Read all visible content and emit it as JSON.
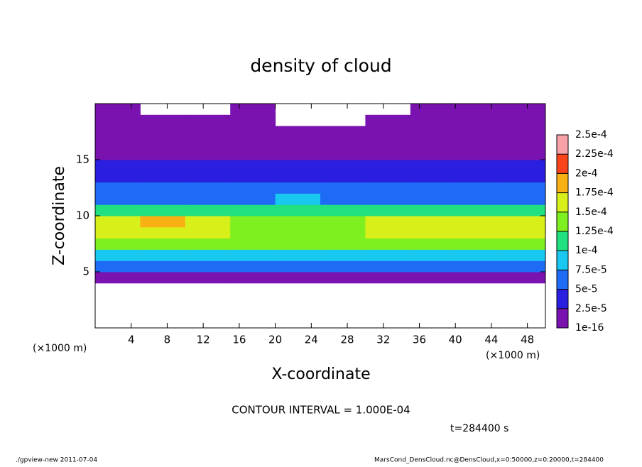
{
  "chart_data": {
    "type": "heatmap",
    "title": "density of cloud",
    "x_label": "X-coordinate",
    "y_label": "Z-coordinate",
    "x_unit": "(×1000 m)",
    "y_unit": "(×1000 m)",
    "note": "CONTOUR INTERVAL = 1.000E-04",
    "time_label": "t=284400 s",
    "footer_left": "./gpview-new  2011-07-04",
    "footer_right": "MarsCond_DensCloud.nc@DensCloud,x=0:50000,z=0:20000,t=284400",
    "xlim": [
      0,
      50
    ],
    "ylim": [
      0,
      20
    ],
    "xticks": [
      4,
      8,
      12,
      16,
      20,
      24,
      28,
      32,
      36,
      40,
      44,
      48
    ],
    "yticks": [
      5,
      10,
      15
    ],
    "xbins": [
      0,
      5,
      10,
      15,
      20,
      25,
      30,
      35,
      40,
      45,
      50
    ],
    "ybins": [
      0,
      1,
      2,
      3,
      4,
      5,
      6,
      7,
      8,
      9,
      10,
      11,
      12,
      13,
      14,
      15,
      16,
      17,
      18,
      19,
      20
    ],
    "values": [
      [
        null,
        null,
        null,
        null,
        null,
        null,
        null,
        null,
        null,
        null
      ],
      [
        null,
        null,
        null,
        null,
        null,
        null,
        null,
        null,
        null,
        null
      ],
      [
        null,
        null,
        null,
        null,
        null,
        null,
        null,
        null,
        null,
        null
      ],
      [
        null,
        null,
        null,
        null,
        null,
        null,
        null,
        null,
        null,
        null
      ],
      [
        2e-05,
        2e-05,
        2e-05,
        2e-05,
        2e-05,
        2e-05,
        2e-05,
        2e-05,
        2e-05,
        2e-05
      ],
      [
        6e-05,
        6e-05,
        6e-05,
        6e-05,
        6e-05,
        6e-05,
        6e-05,
        6e-05,
        6e-05,
        6e-05
      ],
      [
        9e-05,
        9e-05,
        9e-05,
        9e-05,
        9e-05,
        9e-05,
        9e-05,
        9e-05,
        9e-05,
        9e-05
      ],
      [
        0.00013,
        0.000135,
        0.00013,
        0.00013,
        0.00013,
        0.00013,
        0.00013,
        0.000135,
        0.000135,
        0.00013
      ],
      [
        0.00015,
        0.00017,
        0.00015,
        0.000145,
        0.000145,
        0.000145,
        0.00015,
        0.00016,
        0.00016,
        0.00015
      ],
      [
        0.000155,
        0.00018,
        0.00015,
        0.000145,
        0.00014,
        0.000145,
        0.00015,
        0.000165,
        0.00016,
        0.00015
      ],
      [
        0.00011,
        0.00011,
        0.000105,
        0.00011,
        0.00012,
        0.00011,
        0.00011,
        0.00012,
        0.000115,
        0.00011
      ],
      [
        7e-05,
        7e-05,
        7e-05,
        7e-05,
        8e-05,
        7e-05,
        7e-05,
        7e-05,
        7e-05,
        7e-05
      ],
      [
        5e-05,
        5e-05,
        5e-05,
        5e-05,
        5e-05,
        5e-05,
        5e-05,
        5e-05,
        5e-05,
        5e-05
      ],
      [
        4e-05,
        4e-05,
        4e-05,
        4e-05,
        4e-05,
        4e-05,
        4e-05,
        4e-05,
        4e-05,
        4e-05
      ],
      [
        3e-05,
        3e-05,
        3e-05,
        3e-05,
        3e-05,
        3e-05,
        3e-05,
        3e-05,
        3e-05,
        3e-05
      ],
      [
        2e-05,
        2e-05,
        2e-05,
        2e-05,
        1.5e-05,
        1.5e-05,
        2e-05,
        2e-05,
        2e-05,
        2e-05
      ],
      [
        1.5e-05,
        1.5e-05,
        1.5e-05,
        1.2e-05,
        1e-05,
        1e-05,
        1.2e-05,
        1.5e-05,
        1.5e-05,
        1.5e-05
      ],
      [
        8e-06,
        8e-06,
        8e-06,
        6e-06,
        2e-06,
        2e-06,
        6e-06,
        8e-06,
        8e-06,
        8e-06
      ],
      [
        3e-06,
        3e-06,
        3e-06,
        3e-06,
        null,
        null,
        3e-06,
        4e-06,
        4e-06,
        3e-06
      ],
      [
        2e-06,
        null,
        null,
        1e-06,
        null,
        null,
        null,
        3e-06,
        3e-06,
        2e-06
      ]
    ],
    "levels": [
      {
        "value": 1e-16,
        "label": "1e-16"
      },
      {
        "value": 2.5e-05,
        "label": "2.5e-5"
      },
      {
        "value": 5e-05,
        "label": "5e-5"
      },
      {
        "value": 7.5e-05,
        "label": "7.5e-5"
      },
      {
        "value": 0.0001,
        "label": "1e-4"
      },
      {
        "value": 0.000125,
        "label": "1.25e-4"
      },
      {
        "value": 0.00015,
        "label": "1.5e-4"
      },
      {
        "value": 0.000175,
        "label": "1.75e-4"
      },
      {
        "value": 0.0002,
        "label": "2e-4"
      },
      {
        "value": 0.000225,
        "label": "2.25e-4"
      },
      {
        "value": 0.00025,
        "label": "2.5e-4"
      }
    ],
    "colors": [
      "#7a12b0",
      "#2a1ee0",
      "#1e6cf5",
      "#18c8f0",
      "#20e080",
      "#7ef020",
      "#d8f01a",
      "#f8b012",
      "#f84418",
      "#f8a0a8"
    ]
  }
}
